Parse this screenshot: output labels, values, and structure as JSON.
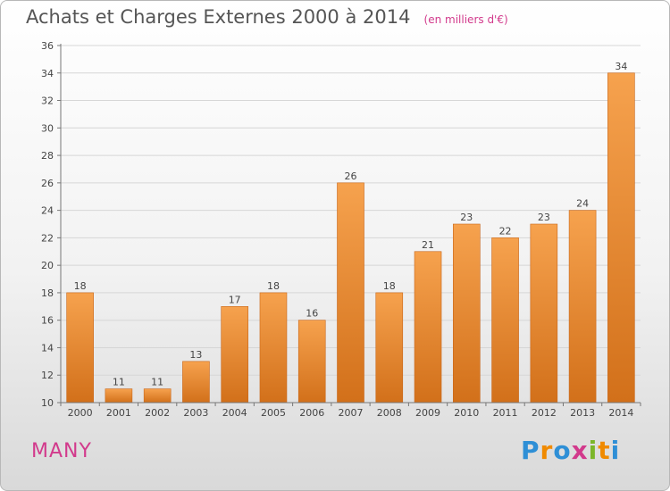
{
  "header": {
    "title": "Achats et Charges Externes 2000 à 2014",
    "subtitle": "(en milliers d'€)"
  },
  "footer": {
    "place": "MANY",
    "logo": [
      "P",
      "r",
      "o",
      "x",
      "i",
      "t",
      "i"
    ]
  },
  "colors": {
    "bar_top": "#f6a24e",
    "bar_bottom": "#d2701a",
    "title": "#555555",
    "accent": "#d23a8c",
    "logo": [
      "#2e8fd6",
      "#f08a00",
      "#2e8fd6",
      "#d23a8c",
      "#7cb62a",
      "#f08a00",
      "#2e8fd6"
    ]
  },
  "chart_data": {
    "type": "bar",
    "title": "Achats et Charges Externes 2000 à 2014",
    "subtitle": "(en milliers d'€)",
    "categories": [
      "2000",
      "2001",
      "2002",
      "2003",
      "2004",
      "2005",
      "2006",
      "2007",
      "2008",
      "2009",
      "2010",
      "2011",
      "2012",
      "2013",
      "2014"
    ],
    "values": [
      18,
      11,
      11,
      13,
      17,
      18,
      16,
      26,
      18,
      21,
      23,
      22,
      23,
      24,
      34
    ],
    "ylim": [
      10,
      36
    ],
    "yticks": [
      10,
      12,
      14,
      16,
      18,
      20,
      22,
      24,
      26,
      28,
      30,
      32,
      34,
      36
    ],
    "grid": true,
    "legend": "none"
  }
}
